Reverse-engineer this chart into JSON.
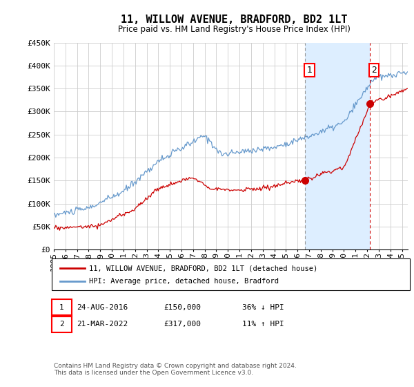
{
  "title": "11, WILLOW AVENUE, BRADFORD, BD2 1LT",
  "subtitle": "Price paid vs. HM Land Registry's House Price Index (HPI)",
  "ylabel_ticks": [
    "£0",
    "£50K",
    "£100K",
    "£150K",
    "£200K",
    "£250K",
    "£300K",
    "£350K",
    "£400K",
    "£450K"
  ],
  "ylim": [
    0,
    450000
  ],
  "xlim_start": 1995.0,
  "xlim_end": 2025.5,
  "sale1_date": 2016.646,
  "sale1_price": 150000,
  "sale2_date": 2022.22,
  "sale2_price": 317000,
  "legend_line1": "11, WILLOW AVENUE, BRADFORD, BD2 1LT (detached house)",
  "legend_line2": "HPI: Average price, detached house, Bradford",
  "footer": "Contains HM Land Registry data © Crown copyright and database right 2024.\nThis data is licensed under the Open Government Licence v3.0.",
  "line_color_red": "#cc0000",
  "line_color_blue": "#6699cc",
  "shade_color": "#ddeeff",
  "bg_color": "#ffffff",
  "grid_color": "#cccccc",
  "title_fontsize": 11,
  "subtitle_fontsize": 9,
  "axis_fontsize": 8
}
